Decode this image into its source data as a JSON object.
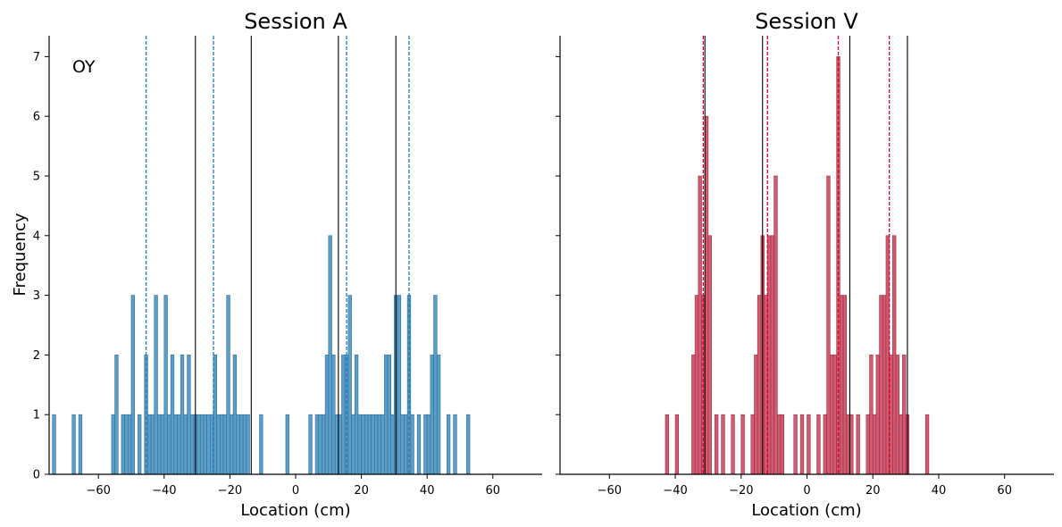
{
  "figure": {
    "ylabel": "Frequency",
    "annotation": "OY"
  },
  "chart_data": [
    {
      "type": "bar",
      "title": "Session A",
      "xlabel": "Location (cm)",
      "ylabel": "Frequency",
      "xlim": [
        -75,
        75
      ],
      "ylim": [
        0,
        7.35
      ],
      "xticks": [
        -60,
        -40,
        -20,
        0,
        20,
        40,
        60
      ],
      "xtick_labels": [
        "−60",
        "−40",
        "−20",
        "0",
        "20",
        "40",
        "60"
      ],
      "yticks": [
        0,
        1,
        2,
        3,
        4,
        5,
        6,
        7
      ],
      "bin_width": 1,
      "bar_color": "#5b9ec8",
      "bar_edge_color": "#2f6c95",
      "bins": [
        [
          -74,
          1
        ],
        [
          -68,
          1
        ],
        [
          -66,
          1
        ],
        [
          -56,
          1
        ],
        [
          -55,
          2
        ],
        [
          -53,
          1
        ],
        [
          -52,
          1
        ],
        [
          -51,
          1
        ],
        [
          -50,
          3
        ],
        [
          -48,
          1
        ],
        [
          -46,
          2
        ],
        [
          -45,
          1
        ],
        [
          -44,
          1
        ],
        [
          -43,
          3
        ],
        [
          -42,
          1
        ],
        [
          -41,
          1
        ],
        [
          -40,
          3
        ],
        [
          -39,
          1
        ],
        [
          -38,
          2
        ],
        [
          -37,
          1
        ],
        [
          -36,
          1
        ],
        [
          -35,
          2
        ],
        [
          -34,
          1
        ],
        [
          -33,
          2
        ],
        [
          -32,
          1
        ],
        [
          -31,
          1
        ],
        [
          -30,
          1
        ],
        [
          -29,
          1
        ],
        [
          -28,
          1
        ],
        [
          -27,
          1
        ],
        [
          -26,
          1
        ],
        [
          -25,
          2
        ],
        [
          -24,
          1
        ],
        [
          -23,
          1
        ],
        [
          -22,
          1
        ],
        [
          -21,
          3
        ],
        [
          -20,
          1
        ],
        [
          -19,
          2
        ],
        [
          -18,
          1
        ],
        [
          -17,
          1
        ],
        [
          -16,
          1
        ],
        [
          -15,
          1
        ],
        [
          -11,
          1
        ],
        [
          -3,
          1
        ],
        [
          4,
          1
        ],
        [
          6,
          1
        ],
        [
          7,
          1
        ],
        [
          8,
          1
        ],
        [
          9,
          2
        ],
        [
          10,
          4
        ],
        [
          11,
          2
        ],
        [
          12,
          1
        ],
        [
          13,
          1
        ],
        [
          14,
          2
        ],
        [
          15,
          2
        ],
        [
          16,
          3
        ],
        [
          17,
          1
        ],
        [
          18,
          2
        ],
        [
          19,
          1
        ],
        [
          20,
          1
        ],
        [
          21,
          1
        ],
        [
          22,
          1
        ],
        [
          23,
          1
        ],
        [
          24,
          1
        ],
        [
          25,
          1
        ],
        [
          26,
          1
        ],
        [
          27,
          2
        ],
        [
          28,
          2
        ],
        [
          29,
          1
        ],
        [
          30,
          3
        ],
        [
          31,
          3
        ],
        [
          32,
          1
        ],
        [
          33,
          1
        ],
        [
          34,
          3
        ],
        [
          35,
          1
        ],
        [
          37,
          1
        ],
        [
          39,
          1
        ],
        [
          40,
          1
        ],
        [
          41,
          2
        ],
        [
          42,
          3
        ],
        [
          43,
          2
        ],
        [
          46,
          1
        ],
        [
          48,
          1
        ],
        [
          52,
          1
        ]
      ],
      "solid_lines_x": [
        -30.5,
        -13.5,
        13,
        30.5
      ],
      "dashed_lines_x": [
        -45.5,
        -25,
        15.5,
        34.5
      ],
      "dashed_line_color": "#1f77b4"
    },
    {
      "type": "bar",
      "title": "Session V",
      "xlabel": "Location (cm)",
      "ylabel": "",
      "xlim": [
        -75,
        75
      ],
      "ylim": [
        0,
        7.35
      ],
      "xticks": [
        -60,
        -40,
        -20,
        0,
        20,
        40,
        60
      ],
      "xtick_labels": [
        "−60",
        "−40",
        "−20",
        "0",
        "20",
        "40",
        "60"
      ],
      "yticks": [
        0,
        1,
        2,
        3,
        4,
        5,
        6,
        7
      ],
      "bin_width": 1,
      "bar_color": "#d45a72",
      "bar_edge_color": "#8f2f44",
      "bins": [
        [
          -43,
          1
        ],
        [
          -40,
          1
        ],
        [
          -35,
          2
        ],
        [
          -34,
          3
        ],
        [
          -33,
          5
        ],
        [
          -32,
          3
        ],
        [
          -31,
          6
        ],
        [
          -30,
          4
        ],
        [
          -28,
          1
        ],
        [
          -26,
          1
        ],
        [
          -23,
          1
        ],
        [
          -20,
          1
        ],
        [
          -17,
          1
        ],
        [
          -16,
          2
        ],
        [
          -15,
          3
        ],
        [
          -14,
          4
        ],
        [
          -13,
          3
        ],
        [
          -12,
          4
        ],
        [
          -11,
          4
        ],
        [
          -10,
          5
        ],
        [
          -9,
          1
        ],
        [
          -8,
          1
        ],
        [
          -4,
          1
        ],
        [
          -2,
          1
        ],
        [
          0,
          1
        ],
        [
          3,
          1
        ],
        [
          5,
          1
        ],
        [
          6,
          5
        ],
        [
          7,
          2
        ],
        [
          8,
          2
        ],
        [
          9,
          7
        ],
        [
          10,
          3
        ],
        [
          11,
          3
        ],
        [
          12,
          1
        ],
        [
          13,
          1
        ],
        [
          15,
          1
        ],
        [
          18,
          1
        ],
        [
          19,
          2
        ],
        [
          20,
          1
        ],
        [
          21,
          2
        ],
        [
          22,
          3
        ],
        [
          23,
          3
        ],
        [
          24,
          4
        ],
        [
          25,
          2
        ],
        [
          26,
          4
        ],
        [
          27,
          2
        ],
        [
          28,
          1
        ],
        [
          29,
          2
        ],
        [
          30,
          1
        ],
        [
          36,
          1
        ]
      ],
      "solid_lines_x": [
        -31,
        -13.5,
        13,
        30.5
      ],
      "dashed_lines_x": [
        -31.5,
        -12,
        9.5,
        25
      ],
      "dashed_line_color": "#d6002a"
    }
  ]
}
